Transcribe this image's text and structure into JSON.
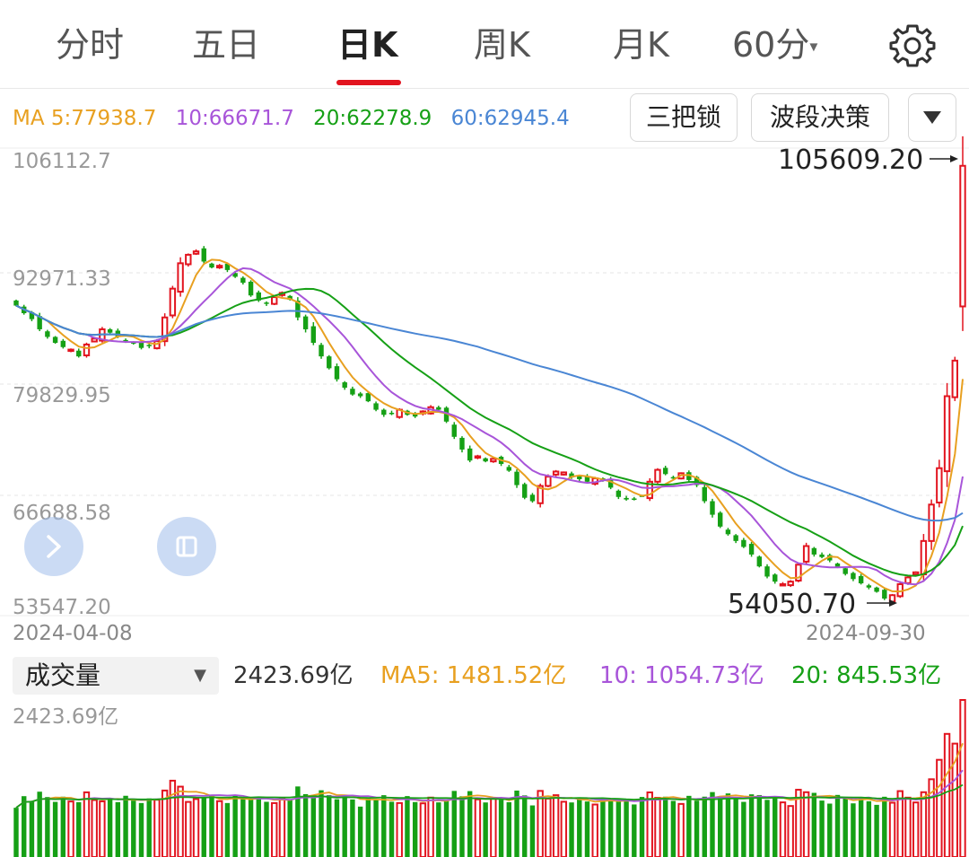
{
  "tabs": [
    {
      "label": "分时"
    },
    {
      "label": "五日"
    },
    {
      "label": "日K",
      "active": true
    },
    {
      "label": "周K"
    },
    {
      "label": "月K"
    },
    {
      "label": "60分"
    }
  ],
  "icons": {
    "settings": "gear-icon",
    "dropdown": "triangle-down-icon",
    "expand": "chevron-right-icon",
    "layout": "square-icon"
  },
  "ma": {
    "ma5": "MA 5:77938.7",
    "ma10": "10:66671.7",
    "ma20": "20:62278.9",
    "ma60": "60:62945.4"
  },
  "buttons": {
    "lock": "三把锁",
    "wave": "波段决策"
  },
  "price_axis": {
    "labels": [
      "106112.7",
      "92971.33",
      "79829.95",
      "66688.58",
      "53547.20"
    ]
  },
  "annotations": {
    "high": "105609.20",
    "low": "54050.70"
  },
  "dates": {
    "start": "2024-04-08",
    "end": "2024-09-30"
  },
  "volume": {
    "selector": "成交量",
    "current": "2423.69亿",
    "ma5": "MA5: 1481.52亿",
    "ma10": "10: 1054.73亿",
    "ma20": "20: 845.53亿",
    "max_label": "2423.69亿"
  },
  "colors": {
    "up": "#e2141f",
    "down": "#15a015",
    "ma5": "#e8a020",
    "ma10": "#a855d9",
    "ma20": "#16a016",
    "ma60": "#4a86d4",
    "accent": "#e2141f"
  },
  "chart_data": {
    "type": "candlestick",
    "xlim": [
      "2024-04-08",
      "2024-09-30"
    ],
    "ylim": [
      53547.2,
      106112.7
    ],
    "closes": [
      89100,
      88200,
      87500,
      86300,
      85400,
      84700,
      84200,
      83900,
      83100,
      84500,
      85200,
      86300,
      85900,
      85400,
      84900,
      84600,
      84100,
      84300,
      84900,
      87700,
      91100,
      94100,
      95100,
      95500,
      94300,
      93600,
      93800,
      93300,
      92500,
      91800,
      90300,
      89700,
      89300,
      90100,
      90600,
      89800,
      87700,
      86300,
      84700,
      83100,
      81700,
      80400,
      79400,
      78600,
      78400,
      77800,
      76800,
      76200,
      76300,
      76800,
      76200,
      76000,
      76600,
      77100,
      76800,
      75400,
      73600,
      72100,
      70800,
      71300,
      70700,
      71000,
      70400,
      69600,
      67900,
      66400,
      66000,
      67800,
      68900,
      69500,
      69400,
      68800,
      68600,
      68300,
      68700,
      68400,
      67600,
      66500,
      66200,
      66300,
      66600,
      68300,
      69700,
      69200,
      68800,
      69300,
      68500,
      67900,
      66000,
      64400,
      63000,
      62100,
      61300,
      60600,
      59700,
      58300,
      57100,
      56500,
      56200,
      56500,
      58500,
      60700,
      59700,
      59400,
      59000,
      58200,
      57400,
      56800,
      56300,
      55800,
      55300,
      54500,
      54900,
      56200,
      57000,
      57600,
      61300,
      65600,
      69900,
      78400,
      82600,
      105609.2
    ],
    "volume_axis_max": 2423.69,
    "volume_unit": "亿",
    "volume_ma": {
      "ma5": 1481.52,
      "ma10": 1054.73,
      "ma20": 845.53
    }
  }
}
